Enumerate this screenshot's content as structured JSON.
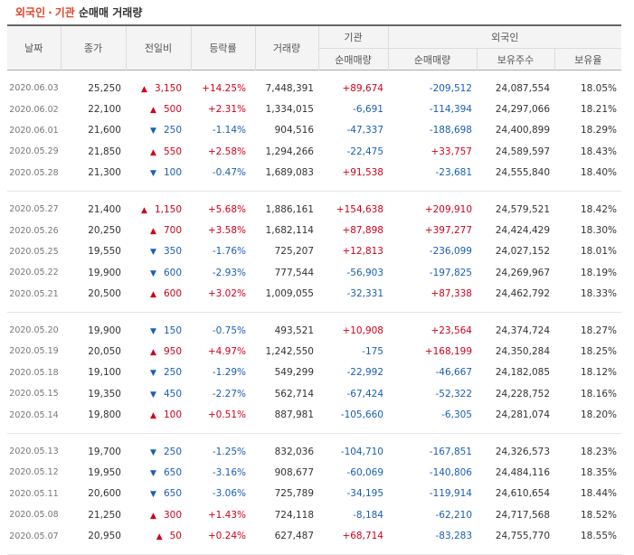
{
  "title": {
    "part1": "외국인",
    "sep": "·",
    "part2": "기관",
    "rest": "순매매 거래량"
  },
  "headers": {
    "date": "날짜",
    "close": "종가",
    "change": "전일비",
    "rate": "등락률",
    "volume": "거래량",
    "inst": "기관",
    "foreign": "외국인",
    "inst_net": "순매매량",
    "foreign_net": "순매매량",
    "foreign_hold": "보유주수",
    "foreign_ratio": "보유율"
  },
  "groups": [
    [
      {
        "date": "2020.06.03",
        "close": "25,250",
        "dir": "up",
        "change": "3,150",
        "rate": "+14.25%",
        "volume": "7,448,391",
        "inst": "+89,674",
        "foreign": "-209,512",
        "hold": "24,087,554",
        "ratio": "18.05%"
      },
      {
        "date": "2020.06.02",
        "close": "22,100",
        "dir": "up",
        "change": "500",
        "rate": "+2.31%",
        "volume": "1,334,015",
        "inst": "-6,691",
        "foreign": "-114,394",
        "hold": "24,297,066",
        "ratio": "18.21%"
      },
      {
        "date": "2020.06.01",
        "close": "21,600",
        "dir": "down",
        "change": "250",
        "rate": "-1.14%",
        "volume": "904,516",
        "inst": "-47,337",
        "foreign": "-188,698",
        "hold": "24,400,899",
        "ratio": "18.29%"
      },
      {
        "date": "2020.05.29",
        "close": "21,850",
        "dir": "up",
        "change": "550",
        "rate": "+2.58%",
        "volume": "1,294,266",
        "inst": "-22,475",
        "foreign": "+33,757",
        "hold": "24,589,597",
        "ratio": "18.43%"
      },
      {
        "date": "2020.05.28",
        "close": "21,300",
        "dir": "down",
        "change": "100",
        "rate": "-0.47%",
        "volume": "1,689,083",
        "inst": "+91,538",
        "foreign": "-23,681",
        "hold": "24,555,840",
        "ratio": "18.40%"
      }
    ],
    [
      {
        "date": "2020.05.27",
        "close": "21,400",
        "dir": "up",
        "change": "1,150",
        "rate": "+5.68%",
        "volume": "1,886,161",
        "inst": "+154,638",
        "foreign": "+209,910",
        "hold": "24,579,521",
        "ratio": "18.42%"
      },
      {
        "date": "2020.05.26",
        "close": "20,250",
        "dir": "up",
        "change": "700",
        "rate": "+3.58%",
        "volume": "1,682,114",
        "inst": "+87,898",
        "foreign": "+397,277",
        "hold": "24,424,429",
        "ratio": "18.30%"
      },
      {
        "date": "2020.05.25",
        "close": "19,550",
        "dir": "down",
        "change": "350",
        "rate": "-1.76%",
        "volume": "725,207",
        "inst": "+12,813",
        "foreign": "-236,099",
        "hold": "24,027,152",
        "ratio": "18.01%"
      },
      {
        "date": "2020.05.22",
        "close": "19,900",
        "dir": "down",
        "change": "600",
        "rate": "-2.93%",
        "volume": "777,544",
        "inst": "-56,903",
        "foreign": "-197,825",
        "hold": "24,269,967",
        "ratio": "18.19%"
      },
      {
        "date": "2020.05.21",
        "close": "20,500",
        "dir": "up",
        "change": "600",
        "rate": "+3.02%",
        "volume": "1,009,055",
        "inst": "-32,331",
        "foreign": "+87,338",
        "hold": "24,462,792",
        "ratio": "18.33%"
      }
    ],
    [
      {
        "date": "2020.05.20",
        "close": "19,900",
        "dir": "down",
        "change": "150",
        "rate": "-0.75%",
        "volume": "493,521",
        "inst": "+10,908",
        "foreign": "+23,564",
        "hold": "24,374,724",
        "ratio": "18.27%"
      },
      {
        "date": "2020.05.19",
        "close": "20,050",
        "dir": "up",
        "change": "950",
        "rate": "+4.97%",
        "volume": "1,242,550",
        "inst": "-175",
        "foreign": "+168,199",
        "hold": "24,350,284",
        "ratio": "18.25%"
      },
      {
        "date": "2020.05.18",
        "close": "19,100",
        "dir": "down",
        "change": "250",
        "rate": "-1.29%",
        "volume": "549,299",
        "inst": "-22,992",
        "foreign": "-46,667",
        "hold": "24,182,085",
        "ratio": "18.12%"
      },
      {
        "date": "2020.05.15",
        "close": "19,350",
        "dir": "down",
        "change": "450",
        "rate": "-2.27%",
        "volume": "562,714",
        "inst": "-67,424",
        "foreign": "-52,322",
        "hold": "24,228,752",
        "ratio": "18.16%"
      },
      {
        "date": "2020.05.14",
        "close": "19,800",
        "dir": "up",
        "change": "100",
        "rate": "+0.51%",
        "volume": "887,981",
        "inst": "-105,660",
        "foreign": "-6,305",
        "hold": "24,281,074",
        "ratio": "18.20%"
      }
    ],
    [
      {
        "date": "2020.05.13",
        "close": "19,700",
        "dir": "down",
        "change": "250",
        "rate": "-1.25%",
        "volume": "832,036",
        "inst": "-104,710",
        "foreign": "-167,851",
        "hold": "24,326,573",
        "ratio": "18.23%"
      },
      {
        "date": "2020.05.12",
        "close": "19,950",
        "dir": "down",
        "change": "650",
        "rate": "-3.16%",
        "volume": "908,677",
        "inst": "-60,069",
        "foreign": "-140,806",
        "hold": "24,484,116",
        "ratio": "18.35%"
      },
      {
        "date": "2020.05.11",
        "close": "20,600",
        "dir": "down",
        "change": "650",
        "rate": "-3.06%",
        "volume": "725,789",
        "inst": "-34,195",
        "foreign": "-119,914",
        "hold": "24,610,654",
        "ratio": "18.44%"
      },
      {
        "date": "2020.05.08",
        "close": "21,250",
        "dir": "up",
        "change": "300",
        "rate": "+1.43%",
        "volume": "724,118",
        "inst": "-8,184",
        "foreign": "-62,210",
        "hold": "24,717,568",
        "ratio": "18.52%"
      },
      {
        "date": "2020.05.07",
        "close": "20,950",
        "dir": "up",
        "change": "50",
        "rate": "+0.24%",
        "volume": "627,487",
        "inst": "+68,714",
        "foreign": "-83,283",
        "hold": "24,755,770",
        "ratio": "18.55%"
      }
    ]
  ],
  "colors": {
    "up": "#d0021b",
    "down": "#1a5fb4",
    "accent": "#e0452a"
  },
  "icons": {
    "up": "triangle-up-icon",
    "down": "triangle-down-icon"
  }
}
